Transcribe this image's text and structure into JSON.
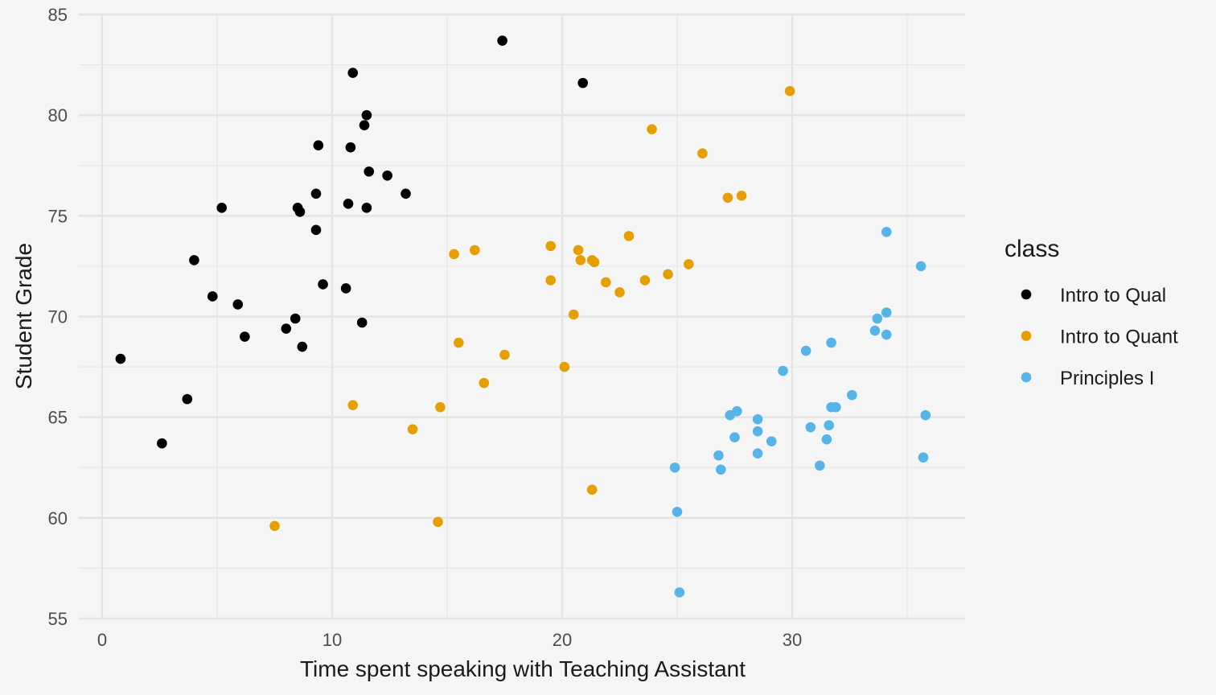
{
  "chart_data": {
    "type": "scatter",
    "title": "",
    "xlabel": "Time spent speaking with Teaching Assistant",
    "ylabel": "Student Grade",
    "xlim": [
      -1,
      37.5
    ],
    "ylim": [
      55,
      85
    ],
    "xticks": [
      0,
      10,
      20,
      30
    ],
    "yticks": [
      55,
      60,
      65,
      70,
      75,
      80,
      85
    ],
    "grid": true,
    "legend_title": "class",
    "legend_position": "right",
    "series": [
      {
        "name": "Intro to Qual",
        "color": "#000000",
        "points": [
          [
            0.8,
            67.9
          ],
          [
            2.6,
            63.7
          ],
          [
            3.7,
            65.9
          ],
          [
            4.0,
            72.8
          ],
          [
            4.8,
            71.0
          ],
          [
            5.2,
            75.4
          ],
          [
            5.9,
            70.6
          ],
          [
            6.2,
            69.0
          ],
          [
            8.0,
            69.4
          ],
          [
            8.4,
            69.9
          ],
          [
            8.5,
            75.4
          ],
          [
            8.6,
            75.2
          ],
          [
            8.7,
            68.5
          ],
          [
            9.3,
            74.3
          ],
          [
            9.3,
            76.1
          ],
          [
            9.4,
            78.5
          ],
          [
            9.6,
            71.6
          ],
          [
            10.6,
            71.4
          ],
          [
            10.7,
            75.6
          ],
          [
            10.8,
            78.4
          ],
          [
            10.9,
            82.1
          ],
          [
            11.3,
            69.7
          ],
          [
            11.4,
            79.5
          ],
          [
            11.5,
            80.0
          ],
          [
            11.5,
            75.4
          ],
          [
            11.6,
            77.2
          ],
          [
            12.4,
            77.0
          ],
          [
            13.2,
            76.1
          ],
          [
            17.4,
            83.7
          ],
          [
            20.9,
            81.6
          ]
        ]
      },
      {
        "name": "Intro to Quant",
        "color": "#e69f00",
        "points": [
          [
            7.5,
            59.6
          ],
          [
            10.9,
            65.6
          ],
          [
            13.5,
            64.4
          ],
          [
            14.6,
            59.8
          ],
          [
            14.7,
            65.5
          ],
          [
            15.3,
            73.1
          ],
          [
            15.5,
            68.7
          ],
          [
            16.2,
            73.3
          ],
          [
            16.6,
            66.7
          ],
          [
            17.5,
            68.1
          ],
          [
            19.5,
            71.8
          ],
          [
            19.5,
            73.5
          ],
          [
            20.1,
            67.5
          ],
          [
            20.5,
            70.1
          ],
          [
            20.7,
            73.3
          ],
          [
            20.8,
            72.8
          ],
          [
            21.3,
            72.8
          ],
          [
            21.3,
            61.4
          ],
          [
            21.4,
            72.7
          ],
          [
            21.9,
            71.7
          ],
          [
            22.5,
            71.2
          ],
          [
            22.9,
            74.0
          ],
          [
            23.6,
            71.8
          ],
          [
            23.9,
            79.3
          ],
          [
            24.6,
            72.1
          ],
          [
            25.5,
            72.6
          ],
          [
            26.1,
            78.1
          ],
          [
            27.2,
            75.9
          ],
          [
            27.8,
            76.0
          ],
          [
            29.9,
            81.2
          ]
        ]
      },
      {
        "name": "Principles I",
        "color": "#56b4e9",
        "points": [
          [
            24.9,
            62.5
          ],
          [
            25.0,
            60.3
          ],
          [
            25.1,
            56.3
          ],
          [
            26.8,
            63.1
          ],
          [
            26.9,
            62.4
          ],
          [
            27.3,
            65.1
          ],
          [
            27.5,
            64.0
          ],
          [
            27.6,
            65.3
          ],
          [
            28.5,
            64.9
          ],
          [
            28.5,
            64.3
          ],
          [
            28.5,
            63.2
          ],
          [
            29.1,
            63.8
          ],
          [
            29.6,
            67.3
          ],
          [
            30.6,
            68.3
          ],
          [
            30.8,
            64.5
          ],
          [
            31.2,
            62.6
          ],
          [
            31.5,
            63.9
          ],
          [
            31.6,
            64.6
          ],
          [
            31.7,
            65.5
          ],
          [
            31.7,
            68.7
          ],
          [
            31.9,
            65.5
          ],
          [
            32.6,
            66.1
          ],
          [
            33.6,
            69.3
          ],
          [
            33.7,
            69.9
          ],
          [
            34.1,
            69.1
          ],
          [
            34.1,
            70.2
          ],
          [
            34.1,
            74.2
          ],
          [
            35.6,
            72.5
          ],
          [
            35.7,
            63.0
          ],
          [
            35.8,
            65.1
          ]
        ]
      }
    ]
  }
}
